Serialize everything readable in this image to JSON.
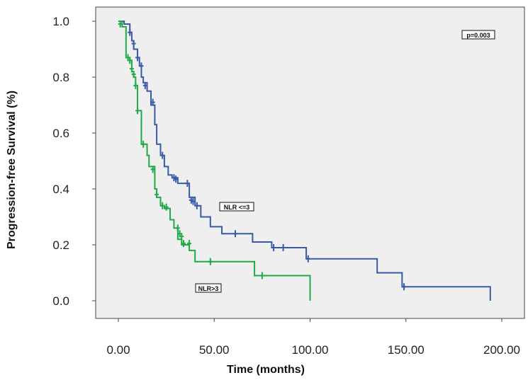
{
  "chart_data": {
    "type": "line",
    "title": "",
    "xlabel": "Time (months)",
    "ylabel": "Progression-free Survival (%)",
    "xlim": [
      0,
      200
    ],
    "ylim": [
      0,
      1.0
    ],
    "x_ticks": [
      0,
      50,
      100,
      150,
      200
    ],
    "x_tick_labels": [
      "0.00",
      "50.00",
      "100.00",
      "150.00",
      "200.00"
    ],
    "y_ticks": [
      0,
      0.2,
      0.4,
      0.6,
      0.8,
      1.0
    ],
    "y_tick_labels": [
      "0.0",
      "0.2",
      "0.4",
      "0.6",
      "0.8",
      "1.0"
    ],
    "annotation": "p=0.003",
    "series": [
      {
        "name": "NLR <=3",
        "color": "#3a5aa8",
        "steps": [
          [
            0,
            1.0
          ],
          [
            3,
            0.99
          ],
          [
            6,
            0.96
          ],
          [
            7,
            0.93
          ],
          [
            8,
            0.9
          ],
          [
            10,
            0.87
          ],
          [
            11,
            0.84
          ],
          [
            12,
            0.8
          ],
          [
            13,
            0.78
          ],
          [
            15,
            0.75
          ],
          [
            17,
            0.7
          ],
          [
            19,
            0.63
          ],
          [
            20,
            0.56
          ],
          [
            22,
            0.52
          ],
          [
            24,
            0.48
          ],
          [
            26,
            0.45
          ],
          [
            28,
            0.44
          ],
          [
            31,
            0.42
          ],
          [
            34,
            0.42
          ],
          [
            37,
            0.37
          ],
          [
            40,
            0.34
          ],
          [
            43,
            0.3
          ],
          [
            48,
            0.265
          ],
          [
            54,
            0.24
          ],
          [
            63,
            0.24
          ],
          [
            70,
            0.21
          ],
          [
            80,
            0.19
          ],
          [
            90,
            0.19
          ],
          [
            98,
            0.15
          ],
          [
            135,
            0.1
          ],
          [
            148,
            0.05
          ],
          [
            194,
            0.05
          ],
          [
            194,
            0.0
          ]
        ],
        "censors": [
          [
            6,
            0.96
          ],
          [
            8,
            0.92
          ],
          [
            10,
            0.87
          ],
          [
            12,
            0.84
          ],
          [
            14,
            0.77
          ],
          [
            18,
            0.71
          ],
          [
            23,
            0.52
          ],
          [
            29,
            0.44
          ],
          [
            30,
            0.435
          ],
          [
            36,
            0.42
          ],
          [
            38,
            0.36
          ],
          [
            39,
            0.355
          ],
          [
            41,
            0.34
          ],
          [
            61,
            0.24
          ],
          [
            81,
            0.19
          ],
          [
            86,
            0.19
          ],
          [
            99,
            0.15
          ],
          [
            149,
            0.05
          ]
        ],
        "label": "NLR <=3"
      },
      {
        "name": "NLR>3",
        "color": "#1faa48",
        "steps": [
          [
            0,
            1.0
          ],
          [
            2,
            0.98
          ],
          [
            4,
            0.87
          ],
          [
            6,
            0.86
          ],
          [
            7,
            0.82
          ],
          [
            8,
            0.8
          ],
          [
            9,
            0.77
          ],
          [
            10,
            0.68
          ],
          [
            12,
            0.56
          ],
          [
            15,
            0.52
          ],
          [
            16,
            0.48
          ],
          [
            19,
            0.4
          ],
          [
            20,
            0.37
          ],
          [
            22,
            0.34
          ],
          [
            24,
            0.33
          ],
          [
            27,
            0.29
          ],
          [
            29,
            0.26
          ],
          [
            31,
            0.22
          ],
          [
            33,
            0.2
          ],
          [
            37,
            0.18
          ],
          [
            40,
            0.14
          ],
          [
            71,
            0.09
          ],
          [
            100,
            0.09
          ],
          [
            100,
            0.0
          ]
        ],
        "censors": [
          [
            1,
            0.99
          ],
          [
            5,
            0.87
          ],
          [
            6,
            0.86
          ],
          [
            7,
            0.83
          ],
          [
            8,
            0.81
          ],
          [
            9,
            0.77
          ],
          [
            10,
            0.68
          ],
          [
            13,
            0.56
          ],
          [
            18,
            0.47
          ],
          [
            20,
            0.38
          ],
          [
            23,
            0.34
          ],
          [
            25,
            0.335
          ],
          [
            31,
            0.26
          ],
          [
            32,
            0.24
          ],
          [
            33,
            0.23
          ],
          [
            34,
            0.205
          ],
          [
            37,
            0.205
          ],
          [
            48,
            0.14
          ],
          [
            75,
            0.09
          ]
        ],
        "label": "NLR>3"
      }
    ]
  }
}
